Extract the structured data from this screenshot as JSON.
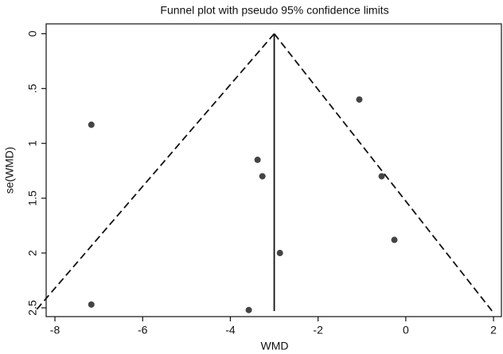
{
  "chart_data": {
    "type": "scatter",
    "title": "Funnel plot with pseudo 95% confidence limits",
    "x_label": "WMD",
    "y_label": "se(WMD)",
    "x": [
      -7.17,
      -1.06,
      -3.38,
      -3.27,
      -0.55,
      -0.26,
      -2.87,
      -7.17,
      -3.58
    ],
    "series": [
      {
        "color": "#444444",
        "values": [
          0.83,
          0.6,
          1.15,
          1.3,
          1.3,
          1.88,
          2.0,
          2.47,
          2.52
        ]
      }
    ],
    "summary_x": -3,
    "pseudo_ci": [
      {
        "x": [
          -3,
          -8.45
        ],
        "y": [
          0,
          2.53
        ]
      },
      {
        "x": [
          -3,
          1.97
        ],
        "y": [
          0,
          2.53
        ]
      }
    ],
    "xlim": [
      -8.2,
      2.18
    ],
    "xticks": [
      -8,
      -6,
      -4,
      -2,
      0,
      2
    ],
    "ylim": [
      -0.09,
      2.58
    ],
    "y_inverted": true,
    "yticks": [
      0,
      {
        "value": 0.5,
        "label": ".5"
      },
      1,
      1.5,
      2,
      2.5
    ]
  }
}
